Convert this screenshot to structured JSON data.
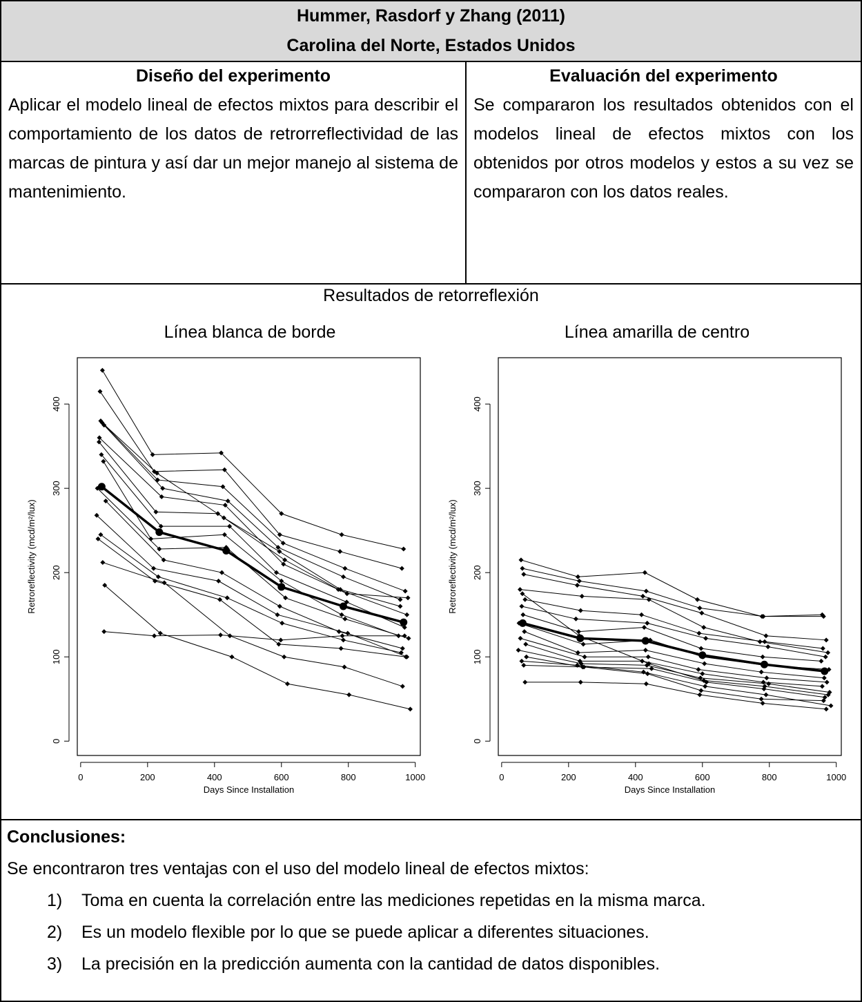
{
  "header": {
    "title": "Hummer, Rasdorf y Zhang (2011)",
    "location": "Carolina del Norte, Estados Unidos"
  },
  "design": {
    "heading": "Diseño del experimento",
    "text": "Aplicar el modelo lineal de efectos mixtos para describir el comportamiento de los datos de retrorreflectividad de las marcas de pintura y así dar un mejor manejo al sistema de mantenimiento."
  },
  "evaluation": {
    "heading": "Evaluación del experimento",
    "text": "Se compararon los resultados obtenidos con el modelos lineal de efectos mixtos con los obtenidos por otros modelos y estos a su vez se compararon con los datos reales."
  },
  "results": {
    "heading": "Resultados de retorreflexión"
  },
  "conclusions": {
    "heading": "Conclusiones:",
    "intro": "Se encontraron tres ventajas con el uso del modelo lineal de efectos mixtos:",
    "items": [
      {
        "num": "1)",
        "text": "Toma en cuenta la correlación entre las mediciones repetidas en la misma marca."
      },
      {
        "num": "2)",
        "text": "Es un modelo flexible por lo que se puede aplicar a diferentes situaciones."
      },
      {
        "num": "3)",
        "text": "La precisión en la predicción aumenta con la cantidad de datos disponibles."
      }
    ]
  },
  "chart_data": [
    {
      "type": "line",
      "title": "Línea blanca de borde",
      "xlabel": "Days Since Installation",
      "ylabel": "Retroreflectivity (mcd/m²/lux)",
      "xlim": [
        0,
        1000
      ],
      "ylim": [
        0,
        450
      ],
      "xticks": [
        0,
        200,
        400,
        600,
        800,
        1000
      ],
      "yticks": [
        0,
        100,
        200,
        300,
        400
      ],
      "mean_series": {
        "x": [
          63,
          235,
          435,
          600,
          785,
          965
        ],
        "y": [
          302,
          248,
          226,
          183,
          160,
          141
        ]
      },
      "individual_series": [
        {
          "x": [
            65,
            215,
            420,
            600,
            780,
            965
          ],
          "y": [
            440,
            340,
            342,
            270,
            245,
            228
          ]
        },
        {
          "x": [
            58,
            220,
            430,
            595,
            775,
            960
          ],
          "y": [
            415,
            320,
            322,
            245,
            225,
            205
          ]
        },
        {
          "x": [
            60,
            230,
            425,
            605,
            790,
            970
          ],
          "y": [
            380,
            310,
            302,
            235,
            205,
            178
          ]
        },
        {
          "x": [
            70,
            245,
            440,
            590,
            785,
            955
          ],
          "y": [
            375,
            300,
            285,
            230,
            195,
            168
          ]
        },
        {
          "x": [
            55,
            225,
            410,
            610,
            770,
            975
          ],
          "y": [
            355,
            272,
            270,
            215,
            180,
            150
          ]
        },
        {
          "x": [
            62,
            240,
            445,
            585,
            795,
            968
          ],
          "y": [
            340,
            255,
            255,
            200,
            165,
            135
          ]
        },
        {
          "x": [
            68,
            210,
            430,
            600,
            780,
            950
          ],
          "y": [
            332,
            240,
            245,
            190,
            150,
            125
          ]
        },
        {
          "x": [
            50,
            235,
            435,
            612,
            790,
            980
          ],
          "y": [
            300,
            228,
            230,
            170,
            145,
            122
          ]
        },
        {
          "x": [
            75,
            248,
            422,
            595,
            772,
            962
          ],
          "y": [
            285,
            215,
            200,
            160,
            130,
            110
          ]
        },
        {
          "x": [
            48,
            218,
            412,
            588,
            798,
            975
          ],
          "y": [
            268,
            205,
            190,
            150,
            128,
            100
          ]
        },
        {
          "x": [
            60,
            232,
            438,
            602,
            785,
            958
          ],
          "y": [
            245,
            195,
            170,
            140,
            120,
            105
          ]
        },
        {
          "x": [
            52,
            222,
            416,
            592,
            778,
            972
          ],
          "y": [
            240,
            190,
            168,
            115,
            110,
            100
          ]
        },
        {
          "x": [
            66,
            250,
            446,
            608,
            788,
            962
          ],
          "y": [
            212,
            188,
            125,
            100,
            88,
            65
          ]
        },
        {
          "x": [
            72,
            238,
            452,
            618,
            802,
            985
          ],
          "y": [
            185,
            128,
            100,
            68,
            55,
            38
          ]
        },
        {
          "x": [
            70,
            220,
            418,
            598,
            782,
            968
          ],
          "y": [
            130,
            125,
            126,
            120,
            125,
            125
          ]
        },
        {
          "x": [
            64,
            228,
            428,
            594,
            776,
            955
          ],
          "y": [
            378,
            318,
            265,
            225,
            180,
            160
          ]
        },
        {
          "x": [
            56,
            242,
            432,
            606,
            796,
            978
          ],
          "y": [
            360,
            290,
            280,
            210,
            175,
            170
          ]
        }
      ]
    },
    {
      "type": "line",
      "title": "Línea amarilla de centro",
      "xlabel": "Days Since Installation",
      "ylabel": "Retroreflectivity (mcd/m²/lux)",
      "xlim": [
        0,
        1000
      ],
      "ylim": [
        0,
        450
      ],
      "xticks": [
        0,
        200,
        400,
        600,
        800,
        1000
      ],
      "yticks": [
        0,
        100,
        200,
        300,
        400
      ],
      "mean_series": {
        "x": [
          63,
          235,
          430,
          600,
          785,
          965
        ],
        "y": [
          140,
          122,
          119,
          102,
          91,
          83
        ]
      },
      "individual_series": [
        {
          "x": [
            58,
            228,
            428,
            585,
            778,
            958
          ],
          "y": [
            215,
            195,
            200,
            168,
            148,
            150
          ]
        },
        {
          "x": [
            62,
            232,
            432,
            592,
            782,
            962
          ],
          "y": [
            205,
            190,
            178,
            158,
            148,
            148
          ]
        },
        {
          "x": [
            66,
            226,
            422,
            598,
            790,
            970
          ],
          "y": [
            198,
            185,
            172,
            152,
            125,
            120
          ]
        },
        {
          "x": [
            55,
            240,
            440,
            604,
            772,
            975
          ],
          "y": [
            180,
            172,
            168,
            135,
            118,
            105
          ]
        },
        {
          "x": [
            70,
            236,
            418,
            590,
            786,
            960
          ],
          "y": [
            168,
            155,
            150,
            128,
            118,
            110
          ]
        },
        {
          "x": [
            60,
            222,
            435,
            610,
            796,
            968
          ],
          "y": [
            160,
            145,
            140,
            122,
            112,
            100
          ]
        },
        {
          "x": [
            64,
            230,
            426,
            596,
            780,
            955
          ],
          "y": [
            150,
            130,
            135,
            110,
            100,
            95
          ]
        },
        {
          "x": [
            52,
            244,
            444,
            602,
            788,
            978
          ],
          "y": [
            140,
            115,
            120,
            100,
            90,
            85
          ]
        },
        {
          "x": [
            68,
            228,
            430,
            606,
            776,
            964
          ],
          "y": [
            130,
            105,
            108,
            92,
            82,
            75
          ]
        },
        {
          "x": [
            56,
            248,
            438,
            588,
            792,
            972
          ],
          "y": [
            122,
            100,
            100,
            85,
            75,
            70
          ]
        },
        {
          "x": [
            72,
            234,
            420,
            600,
            782,
            958
          ],
          "y": [
            115,
            95,
            95,
            80,
            70,
            65
          ]
        },
        {
          "x": [
            50,
            238,
            434,
            594,
            798,
            980
          ],
          "y": [
            108,
            92,
            90,
            75,
            68,
            58
          ]
        },
        {
          "x": [
            74,
            242,
            448,
            612,
            784,
            966
          ],
          "y": [
            100,
            88,
            86,
            70,
            62,
            52
          ]
        },
        {
          "x": [
            60,
            226,
            424,
            608,
            790,
            984
          ],
          "y": [
            95,
            90,
            82,
            65,
            55,
            42
          ]
        },
        {
          "x": [
            66,
            246,
            436,
            596,
            776,
            962
          ],
          "y": [
            90,
            88,
            80,
            60,
            50,
            48
          ]
        },
        {
          "x": [
            70,
            236,
            432,
            592,
            780,
            970
          ],
          "y": [
            70,
            70,
            68,
            55,
            45,
            38
          ]
        },
        {
          "x": [
            62,
            232,
            440,
            604,
            786,
            976
          ],
          "y": [
            175,
            125,
            92,
            72,
            65,
            55
          ]
        }
      ]
    }
  ]
}
